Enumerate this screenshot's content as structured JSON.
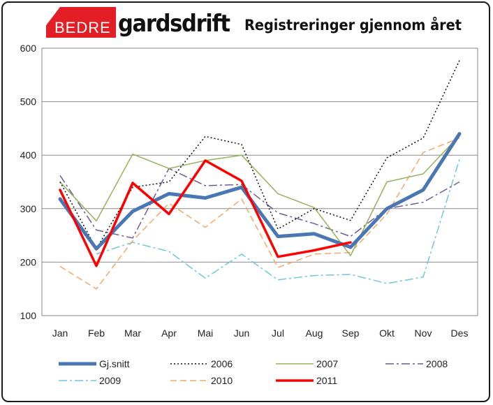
{
  "brand": {
    "logo_left": "BEDRE",
    "logo_right": "gardsdrift"
  },
  "chart_data": {
    "type": "line",
    "title": "Registreringer gjennom året",
    "xlabel": "",
    "ylabel": "",
    "categories": [
      "Jan",
      "Feb",
      "Mar",
      "Apr",
      "Mai",
      "Jun",
      "Jul",
      "Aug",
      "Sep",
      "Okt",
      "Nov",
      "Des"
    ],
    "ylim": [
      100,
      600
    ],
    "yticks": [
      100,
      200,
      300,
      400,
      500,
      600
    ],
    "grid": true,
    "legend_position": "bottom",
    "series": [
      {
        "name": "Gj.snitt",
        "color": "#4a77b4",
        "dash": "solid",
        "values": [
          318,
          225,
          295,
          328,
          320,
          340,
          248,
          253,
          228,
          300,
          335,
          440
        ]
      },
      {
        "name": "2006",
        "color": "#111111",
        "dash": "dotted",
        "values": [
          350,
          225,
          340,
          350,
          435,
          420,
          262,
          300,
          278,
          395,
          432,
          577
        ]
      },
      {
        "name": "2007",
        "color": "#93b35a",
        "dash": "solid",
        "values": [
          350,
          277,
          402,
          375,
          390,
          400,
          328,
          302,
          212,
          350,
          365,
          437
        ]
      },
      {
        "name": "2008",
        "color": "#6c5a9c",
        "dash": "dashdot",
        "values": [
          362,
          260,
          245,
          375,
          343,
          345,
          292,
          272,
          248,
          300,
          312,
          350
        ]
      },
      {
        "name": "2009",
        "color": "#6ec8dc",
        "dash": "dashdot",
        "values": [
          null,
          215,
          237,
          220,
          170,
          215,
          167,
          175,
          177,
          160,
          172,
          392
        ]
      },
      {
        "name": "2010",
        "color": "#f2a868",
        "dash": "dashed",
        "values": [
          192,
          150,
          240,
          310,
          265,
          318,
          190,
          215,
          218,
          290,
          405,
          432
        ]
      },
      {
        "name": "2011",
        "color": "#ff0000",
        "dash": "solid",
        "values": [
          335,
          193,
          348,
          290,
          390,
          352,
          210,
          222,
          237,
          null,
          null,
          null
        ]
      }
    ]
  }
}
